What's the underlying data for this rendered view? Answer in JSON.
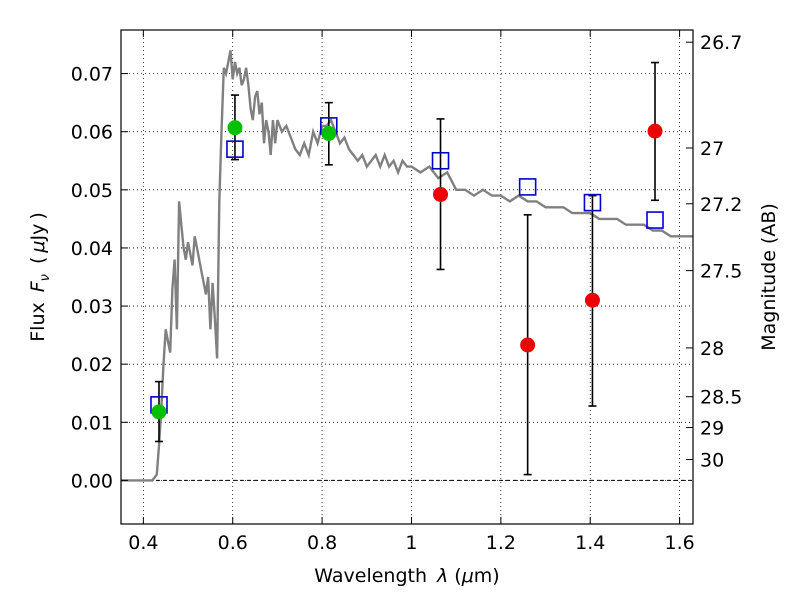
{
  "chart_data": {
    "type": "scatter",
    "xlabel": "Wavelength  λ (μm)",
    "ylabel": "Flux  F_ν  ( μJy )",
    "ylabel_parts": {
      "word": "Flux",
      "var": "F",
      "sub": "ν",
      "unit_open": "(",
      "unit_mu": "μ",
      "unit_rest": "Jy",
      "unit_close": ")"
    },
    "xlabel_parts": {
      "word": "Wavelength",
      "var": "λ",
      "unit_open": "(",
      "unit_mu": "μ",
      "unit_rest": "m)"
    },
    "ylabel_right": "Magnitude (AB)",
    "xlim": [
      0.35,
      1.63
    ],
    "ylim": [
      -0.0075,
      0.0775
    ],
    "grid": true,
    "x_ticks": [
      0.4,
      0.6,
      0.8,
      1.0,
      1.2,
      1.4,
      1.6
    ],
    "x_tick_labels": [
      "0.4",
      "0.6",
      "0.8",
      "1",
      "1.2",
      "1.4",
      "1.6"
    ],
    "y_ticks": [
      0.0,
      0.01,
      0.02,
      0.03,
      0.04,
      0.05,
      0.06,
      0.07
    ],
    "y_tick_labels": [
      "0.00",
      "0.01",
      "0.02",
      "0.03",
      "0.04",
      "0.05",
      "0.06",
      "0.07"
    ],
    "right_ticks": [
      {
        "label": "26.7",
        "flux": 0.0754
      },
      {
        "label": "27",
        "flux": 0.0572
      },
      {
        "label": "27.2",
        "flux": 0.0476
      },
      {
        "label": "27.5",
        "flux": 0.0361
      },
      {
        "label": "28",
        "flux": 0.0228
      },
      {
        "label": "28.5",
        "flux": 0.0144
      },
      {
        "label": "29",
        "flux": 0.0091
      },
      {
        "label": "30",
        "flux": 0.0036
      }
    ],
    "colors": {
      "template": "#808080",
      "model_marker": "#0000cc",
      "detection": "#00c000",
      "nondetection": "#ee0000",
      "errorbar": "#000000",
      "zero_line": "#000000"
    },
    "series": [
      {
        "kind": "line",
        "x": [
          0.35,
          0.42,
          0.43,
          0.435,
          0.44,
          0.445,
          0.45,
          0.455,
          0.46,
          0.465,
          0.47,
          0.475,
          0.48,
          0.485,
          0.49,
          0.495,
          0.5,
          0.505,
          0.51,
          0.515,
          0.52,
          0.525,
          0.53,
          0.535,
          0.54,
          0.545,
          0.55,
          0.555,
          0.56,
          0.565,
          0.57,
          0.575,
          0.58,
          0.585,
          0.59,
          0.595,
          0.6,
          0.605,
          0.61,
          0.615,
          0.62,
          0.625,
          0.63,
          0.635,
          0.64,
          0.645,
          0.65,
          0.655,
          0.66,
          0.665,
          0.67,
          0.675,
          0.68,
          0.685,
          0.69,
          0.695,
          0.7,
          0.71,
          0.72,
          0.73,
          0.74,
          0.75,
          0.76,
          0.77,
          0.78,
          0.79,
          0.8,
          0.81,
          0.82,
          0.83,
          0.84,
          0.85,
          0.86,
          0.87,
          0.88,
          0.89,
          0.9,
          0.91,
          0.92,
          0.93,
          0.94,
          0.95,
          0.96,
          0.97,
          0.98,
          0.99,
          1.0,
          1.02,
          1.04,
          1.06,
          1.08,
          1.1,
          1.12,
          1.14,
          1.16,
          1.18,
          1.2,
          1.22,
          1.24,
          1.26,
          1.28,
          1.3,
          1.32,
          1.34,
          1.36,
          1.38,
          1.4,
          1.42,
          1.44,
          1.46,
          1.48,
          1.5,
          1.52,
          1.54,
          1.56,
          1.58,
          1.6,
          1.63
        ],
        "y": [
          0.0,
          0.0,
          0.001,
          0.006,
          0.012,
          0.02,
          0.026,
          0.024,
          0.022,
          0.033,
          0.038,
          0.026,
          0.048,
          0.044,
          0.04,
          0.038,
          0.041,
          0.039,
          0.037,
          0.042,
          0.04,
          0.038,
          0.036,
          0.034,
          0.032,
          0.035,
          0.026,
          0.034,
          0.028,
          0.021,
          0.048,
          0.06,
          0.071,
          0.07,
          0.072,
          0.074,
          0.069,
          0.072,
          0.07,
          0.071,
          0.068,
          0.069,
          0.071,
          0.068,
          0.064,
          0.062,
          0.066,
          0.067,
          0.063,
          0.065,
          0.058,
          0.062,
          0.06,
          0.056,
          0.062,
          0.058,
          0.062,
          0.06,
          0.061,
          0.059,
          0.057,
          0.056,
          0.058,
          0.056,
          0.06,
          0.058,
          0.061,
          0.061,
          0.062,
          0.06,
          0.058,
          0.059,
          0.057,
          0.056,
          0.055,
          0.056,
          0.054,
          0.055,
          0.056,
          0.054,
          0.056,
          0.054,
          0.055,
          0.053,
          0.055,
          0.054,
          0.054,
          0.053,
          0.054,
          0.052,
          0.053,
          0.05,
          0.05,
          0.049,
          0.05,
          0.049,
          0.049,
          0.048,
          0.049,
          0.048,
          0.048,
          0.047,
          0.047,
          0.047,
          0.046,
          0.046,
          0.046,
          0.045,
          0.045,
          0.045,
          0.044,
          0.044,
          0.044,
          0.043,
          0.043,
          0.042,
          0.042,
          0.042
        ]
      },
      {
        "kind": "model_squares",
        "x": [
          0.435,
          0.605,
          0.815,
          1.065,
          1.26,
          1.405,
          1.545
        ],
        "y": [
          0.013,
          0.057,
          0.061,
          0.055,
          0.0505,
          0.0478,
          0.0448
        ]
      },
      {
        "kind": "detections",
        "x": [
          0.435,
          0.605,
          0.815
        ],
        "y": [
          0.0118,
          0.0607,
          0.0597
        ],
        "yerr_low": [
          0.0067,
          0.0552,
          0.0543
        ],
        "yerr_high": [
          0.017,
          0.0663,
          0.065
        ]
      },
      {
        "kind": "nondetections",
        "x": [
          1.065,
          1.26,
          1.405,
          1.545
        ],
        "y": [
          0.0492,
          0.0233,
          0.031,
          0.0601
        ],
        "yerr_low": [
          0.0363,
          0.001,
          0.0128,
          0.0482
        ],
        "yerr_high": [
          0.0622,
          0.0457,
          0.049,
          0.0719
        ]
      }
    ]
  }
}
